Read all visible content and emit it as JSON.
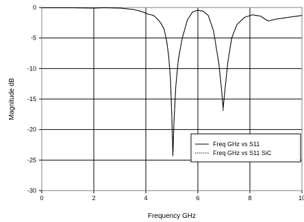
{
  "chart_data": {
    "type": "line",
    "title": "",
    "xlabel": "Frequency GHz",
    "ylabel": "Magnitude dB",
    "xlim": [
      0,
      10
    ],
    "ylim": [
      -30,
      0
    ],
    "xticks": [
      0,
      2,
      4,
      6,
      8,
      10
    ],
    "yticks": [
      0,
      -5,
      -10,
      -15,
      -20,
      -25,
      -30
    ],
    "grid": true,
    "legend_position": "bottom-right",
    "series": [
      {
        "name": "Freq GHz vs S11",
        "style": "solid",
        "color": "#000000",
        "points": [
          [
            0,
            -0.05
          ],
          [
            1,
            -0.05
          ],
          [
            2,
            -0.1
          ],
          [
            2.4,
            -0.05
          ],
          [
            3,
            -0.1
          ],
          [
            3.5,
            -0.3
          ],
          [
            3.8,
            -0.6
          ],
          [
            4.1,
            -1.1
          ],
          [
            4.3,
            -1.3
          ],
          [
            4.45,
            -1.9
          ],
          [
            4.55,
            -2.4
          ],
          [
            4.7,
            -3.5
          ],
          [
            4.8,
            -5.5
          ],
          [
            4.88,
            -8
          ],
          [
            4.95,
            -12
          ],
          [
            5.0,
            -18
          ],
          [
            5.04,
            -24.3
          ],
          [
            5.08,
            -19
          ],
          [
            5.15,
            -13
          ],
          [
            5.25,
            -8.5
          ],
          [
            5.4,
            -5
          ],
          [
            5.6,
            -2
          ],
          [
            5.8,
            -0.7
          ],
          [
            6.0,
            -0.45
          ],
          [
            6.2,
            -0.6
          ],
          [
            6.4,
            -1.3
          ],
          [
            6.6,
            -3.8
          ],
          [
            6.8,
            -9
          ],
          [
            6.9,
            -13
          ],
          [
            6.97,
            -16.4
          ],
          [
            7.03,
            -14
          ],
          [
            7.15,
            -9
          ],
          [
            7.3,
            -5
          ],
          [
            7.5,
            -2.8
          ],
          [
            7.8,
            -1.6
          ],
          [
            8.1,
            -1.2
          ],
          [
            8.4,
            -1.4
          ],
          [
            8.7,
            -2.2
          ],
          [
            9.0,
            -1.9
          ],
          [
            9.5,
            -1.6
          ],
          [
            10,
            -1.3
          ]
        ]
      },
      {
        "name": "Freq GHz vs S11 SiC",
        "style": "dotted",
        "color": "#000000",
        "points": [
          [
            0,
            -0.05
          ],
          [
            1,
            -0.05
          ],
          [
            2,
            -0.1
          ],
          [
            2.4,
            -0.05
          ],
          [
            3,
            -0.1
          ],
          [
            3.5,
            -0.3
          ],
          [
            3.8,
            -0.6
          ],
          [
            4.1,
            -1.1
          ],
          [
            4.3,
            -1.3
          ],
          [
            4.45,
            -1.9
          ],
          [
            4.55,
            -2.4
          ],
          [
            4.7,
            -3.5
          ],
          [
            4.8,
            -5.5
          ],
          [
            4.88,
            -8
          ],
          [
            4.95,
            -12
          ],
          [
            5.0,
            -18
          ],
          [
            5.04,
            -24.0
          ],
          [
            5.08,
            -19
          ],
          [
            5.15,
            -13
          ],
          [
            5.25,
            -8.5
          ],
          [
            5.4,
            -5
          ],
          [
            5.6,
            -2
          ],
          [
            5.8,
            -0.7
          ],
          [
            6.0,
            -0.45
          ],
          [
            6.2,
            -0.6
          ],
          [
            6.4,
            -1.3
          ],
          [
            6.6,
            -3.8
          ],
          [
            6.8,
            -9
          ],
          [
            6.9,
            -13
          ],
          [
            6.97,
            -16.9
          ],
          [
            7.03,
            -14
          ],
          [
            7.15,
            -9
          ],
          [
            7.3,
            -5
          ],
          [
            7.5,
            -2.8
          ],
          [
            7.8,
            -1.6
          ],
          [
            8.1,
            -1.2
          ],
          [
            8.4,
            -1.4
          ],
          [
            8.7,
            -2.2
          ],
          [
            9.0,
            -1.9
          ],
          [
            9.5,
            -1.6
          ],
          [
            10,
            -1.3
          ]
        ]
      }
    ]
  }
}
